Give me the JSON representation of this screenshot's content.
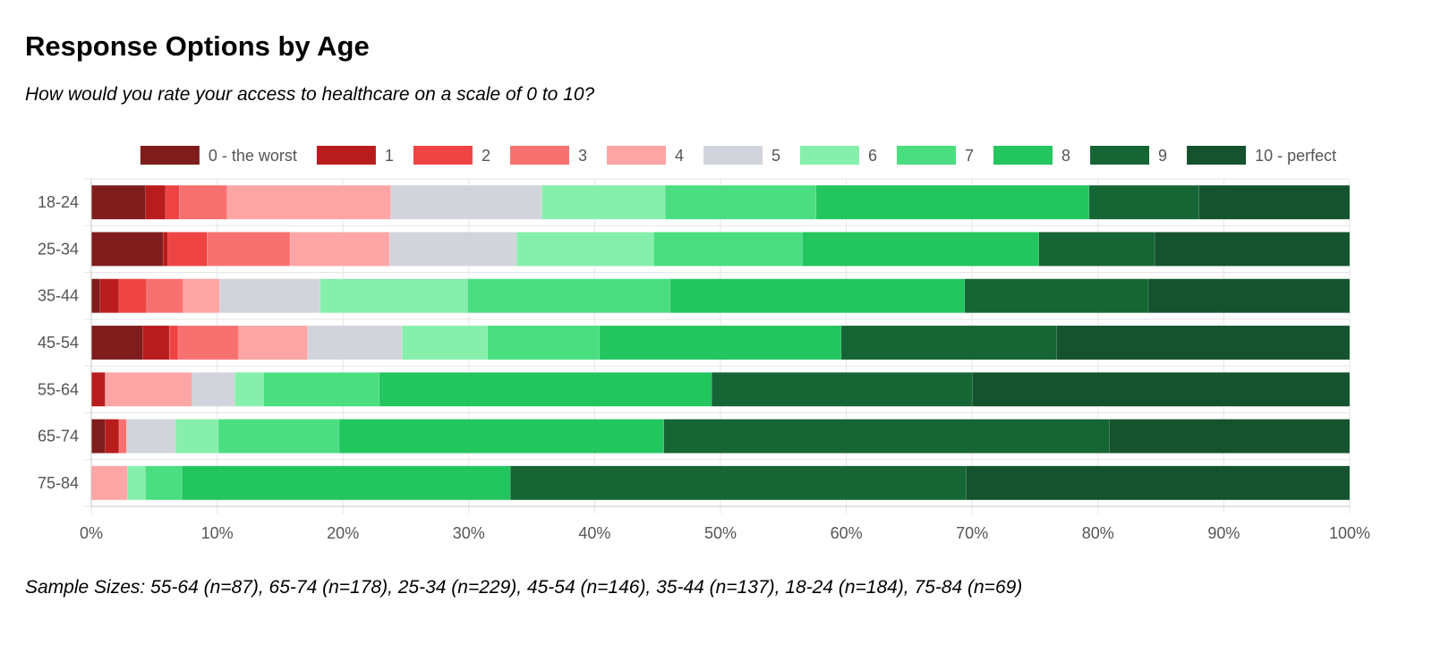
{
  "title": "Response Options by Age",
  "subtitle": "How would you rate your access to healthcare on a scale of 0 to 10?",
  "footer": "Sample Sizes: 55-64 (n=87), 65-74 (n=178), 25-34 (n=229), 45-54 (n=146), 35-44 (n=137), 18-24 (n=184), 75-84 (n=69)",
  "chart_data": {
    "type": "bar",
    "orientation": "horizontal",
    "stacked": true,
    "normalized": true,
    "categories": [
      "18-24",
      "25-34",
      "35-44",
      "45-54",
      "55-64",
      "65-74",
      "75-84"
    ],
    "xlim": [
      0,
      100
    ],
    "x_ticks": [
      "0%",
      "10%",
      "20%",
      "30%",
      "40%",
      "50%",
      "60%",
      "70%",
      "80%",
      "90%",
      "100%"
    ],
    "grid": true,
    "legend_position": "top",
    "series": [
      {
        "name": "0 - the worst",
        "color": "#7f1d1d",
        "values": [
          4.3,
          5.7,
          0.7,
          4.1,
          0,
          1.1,
          0
        ]
      },
      {
        "name": "1",
        "color": "#b91c1c",
        "values": [
          1.6,
          0.4,
          1.5,
          2.1,
          1.1,
          1.1,
          0
        ]
      },
      {
        "name": "2",
        "color": "#ef4444",
        "values": [
          1.1,
          3.1,
          2.2,
          0.7,
          0,
          0,
          0
        ]
      },
      {
        "name": "3",
        "color": "#f87171",
        "values": [
          3.8,
          6.6,
          2.9,
          4.8,
          0,
          0.6,
          0
        ]
      },
      {
        "name": "4",
        "color": "#fca5a5",
        "values": [
          13.0,
          7.9,
          2.9,
          5.5,
          6.9,
          0,
          2.9
        ]
      },
      {
        "name": "5",
        "color": "#d1d5db",
        "values": [
          12.0,
          10.1,
          8.0,
          7.5,
          3.4,
          3.9,
          0
        ]
      },
      {
        "name": "6",
        "color": "#86efac",
        "values": [
          9.8,
          10.9,
          11.7,
          6.8,
          2.3,
          3.4,
          1.4
        ]
      },
      {
        "name": "7",
        "color": "#4ade80",
        "values": [
          12.0,
          11.8,
          16.1,
          8.9,
          9.2,
          9.6,
          2.9
        ]
      },
      {
        "name": "8",
        "color": "#22c55e",
        "values": [
          21.7,
          18.8,
          23.4,
          19.2,
          26.4,
          25.8,
          26.1
        ]
      },
      {
        "name": "9",
        "color": "#166534",
        "values": [
          8.7,
          9.2,
          14.6,
          17.1,
          20.7,
          35.4,
          36.2
        ]
      },
      {
        "name": "10 - perfect",
        "color": "#14532d",
        "values": [
          12.0,
          15.5,
          16.0,
          23.3,
          30.0,
          19.1,
          30.5
        ]
      }
    ]
  }
}
